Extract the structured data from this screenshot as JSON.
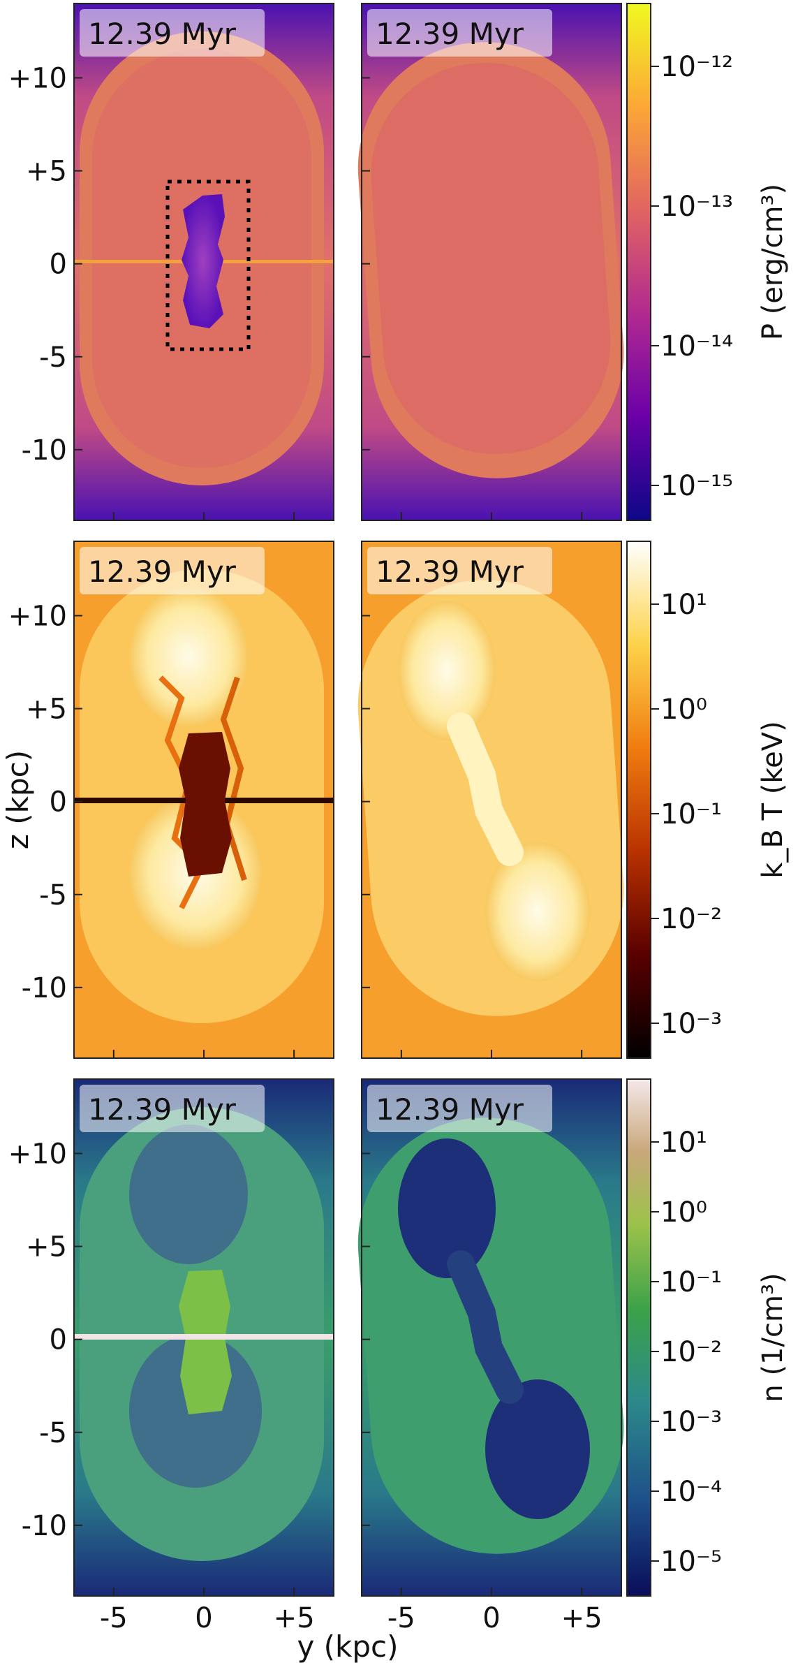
{
  "time_label": "12.39 Myr",
  "xlabel": "y (kpc)",
  "ylabel": "z (kpc)",
  "x_ticks": [
    "-5",
    "0",
    "+5"
  ],
  "y_ticks": [
    "+10",
    "+5",
    "0",
    "-5",
    "-10"
  ],
  "rows": [
    {
      "quantity": "pressure",
      "colorbar_label": "P (erg/cm³)",
      "colorbar_ticks": [
        "10⁻¹²",
        "10⁻¹³",
        "10⁻¹⁴",
        "10⁻¹⁵"
      ],
      "colormap": [
        "#0d0887",
        "#6a00a8",
        "#b12a90",
        "#e16462",
        "#fca636",
        "#f0f921"
      ]
    },
    {
      "quantity": "temperature",
      "colorbar_label": "k_B T (keV)",
      "colorbar_ticks": [
        "10¹",
        "10⁰",
        "10⁻¹",
        "10⁻²",
        "10⁻³"
      ],
      "colormap": [
        "#000000",
        "#5a0000",
        "#b83200",
        "#f07c10",
        "#fdd24a",
        "#ffffff"
      ]
    },
    {
      "quantity": "density",
      "colorbar_label": "n (1/cm³)",
      "colorbar_ticks": [
        "10¹",
        "10⁰",
        "10⁻¹",
        "10⁻²",
        "10⁻³",
        "10⁻⁴",
        "10⁻⁵"
      ],
      "colormap": [
        "#0b0d5a",
        "#1d4f8a",
        "#2c8a8a",
        "#3aa14a",
        "#9cc24a",
        "#c9a77a",
        "#f4e8ea"
      ]
    }
  ]
}
